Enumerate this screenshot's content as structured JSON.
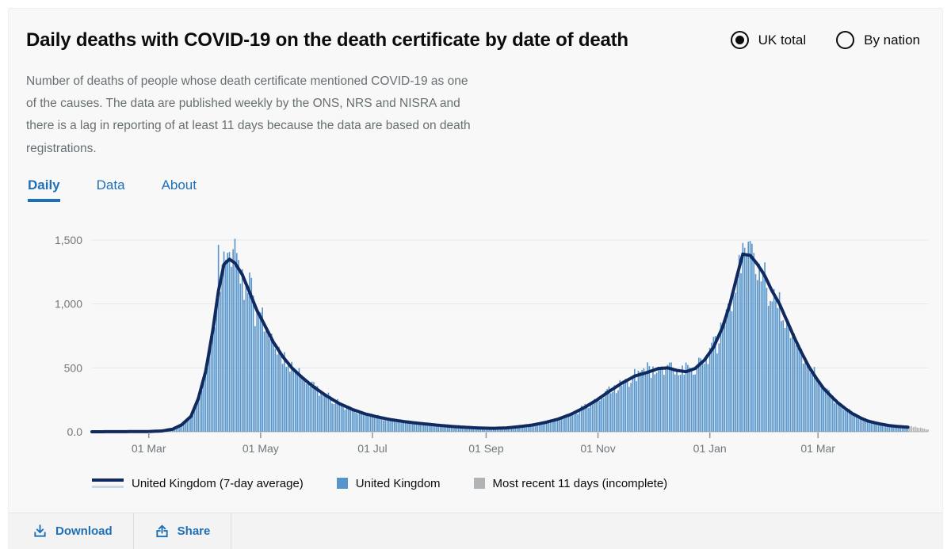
{
  "header": {
    "title": "Daily deaths with COVID-19 on the death certificate by date of death",
    "radios": [
      {
        "label": "UK total",
        "selected": true
      },
      {
        "label": "By nation",
        "selected": false
      }
    ]
  },
  "description": "Number of deaths of people whose death certificate mentioned COVID-19 as one of the causes. The data are published weekly by the ONS, NRS and NISRA and there is a lag in reporting of at least 11 days because the data are based on death registrations.",
  "tabs": [
    {
      "label": "Daily",
      "active": true
    },
    {
      "label": "Data",
      "active": false
    },
    {
      "label": "About",
      "active": false
    }
  ],
  "colors": {
    "bar_blue": "#5694ca",
    "line_navy": "#10295f",
    "bar_gray": "#b1b4b6",
    "grid": "#e4e7e9",
    "axis": "#b1b4b6",
    "tick_text": "#6f777b",
    "link_blue": "#1d70b8"
  },
  "chart_data": {
    "type": "bar",
    "title": "Daily deaths with COVID-19 on the death certificate by date of death",
    "xlabel": "",
    "ylabel": "",
    "x_axis": {
      "start_date": "2020-01-30",
      "end_date": "2021-04-30",
      "ticks": [
        "2020-03-01",
        "2020-05-01",
        "2020-07-01",
        "2020-09-01",
        "2020-11-01",
        "2021-01-01",
        "2021-03-01"
      ],
      "tick_labels": [
        "01 Mar",
        "01 May",
        "01 Jul",
        "01 Sep",
        "01 Nov",
        "01 Jan",
        "01 Mar"
      ]
    },
    "y_axis": {
      "ticks": [
        0,
        500,
        1000,
        1500
      ],
      "tick_labels": [
        "0.0",
        "500",
        "1,000",
        "1,500"
      ],
      "ylim": [
        0,
        1550
      ],
      "grid": true
    },
    "series": [
      {
        "name": "United Kingdom (7-day average)",
        "type": "line",
        "color": "#10295f",
        "points": [
          [
            "2020-01-30",
            0
          ],
          [
            "2020-02-20",
            1
          ],
          [
            "2020-03-01",
            2
          ],
          [
            "2020-03-08",
            6
          ],
          [
            "2020-03-14",
            20
          ],
          [
            "2020-03-19",
            55
          ],
          [
            "2020-03-24",
            120
          ],
          [
            "2020-03-28",
            260
          ],
          [
            "2020-04-01",
            470
          ],
          [
            "2020-04-05",
            800
          ],
          [
            "2020-04-08",
            1100
          ],
          [
            "2020-04-11",
            1310
          ],
          [
            "2020-04-14",
            1350
          ],
          [
            "2020-04-17",
            1320
          ],
          [
            "2020-04-21",
            1230
          ],
          [
            "2020-04-25",
            1090
          ],
          [
            "2020-04-29",
            950
          ],
          [
            "2020-05-03",
            840
          ],
          [
            "2020-05-08",
            700
          ],
          [
            "2020-05-13",
            590
          ],
          [
            "2020-05-18",
            500
          ],
          [
            "2020-05-24",
            420
          ],
          [
            "2020-05-30",
            350
          ],
          [
            "2020-06-06",
            280
          ],
          [
            "2020-06-13",
            220
          ],
          [
            "2020-06-20",
            175
          ],
          [
            "2020-06-27",
            140
          ],
          [
            "2020-07-04",
            115
          ],
          [
            "2020-07-11",
            95
          ],
          [
            "2020-07-18",
            80
          ],
          [
            "2020-07-25",
            68
          ],
          [
            "2020-08-01",
            58
          ],
          [
            "2020-08-08",
            48
          ],
          [
            "2020-08-15",
            40
          ],
          [
            "2020-08-22",
            34
          ],
          [
            "2020-08-29",
            29
          ],
          [
            "2020-09-05",
            27
          ],
          [
            "2020-09-12",
            30
          ],
          [
            "2020-09-19",
            40
          ],
          [
            "2020-09-26",
            52
          ],
          [
            "2020-10-03",
            72
          ],
          [
            "2020-10-10",
            98
          ],
          [
            "2020-10-17",
            135
          ],
          [
            "2020-10-24",
            185
          ],
          [
            "2020-10-31",
            245
          ],
          [
            "2020-11-07",
            315
          ],
          [
            "2020-11-14",
            380
          ],
          [
            "2020-11-21",
            435
          ],
          [
            "2020-11-28",
            465
          ],
          [
            "2020-12-04",
            495
          ],
          [
            "2020-12-09",
            500
          ],
          [
            "2020-12-14",
            480
          ],
          [
            "2020-12-19",
            470
          ],
          [
            "2020-12-24",
            495
          ],
          [
            "2020-12-29",
            560
          ],
          [
            "2021-01-03",
            660
          ],
          [
            "2021-01-08",
            820
          ],
          [
            "2021-01-12",
            1000
          ],
          [
            "2021-01-16",
            1230
          ],
          [
            "2021-01-19",
            1390
          ],
          [
            "2021-01-23",
            1380
          ],
          [
            "2021-01-27",
            1310
          ],
          [
            "2021-01-31",
            1220
          ],
          [
            "2021-02-04",
            1100
          ],
          [
            "2021-02-08",
            1000
          ],
          [
            "2021-02-12",
            870
          ],
          [
            "2021-02-16",
            740
          ],
          [
            "2021-02-20",
            620
          ],
          [
            "2021-02-24",
            510
          ],
          [
            "2021-02-28",
            420
          ],
          [
            "2021-03-04",
            340
          ],
          [
            "2021-03-08",
            280
          ],
          [
            "2021-03-12",
            225
          ],
          [
            "2021-03-16",
            180
          ],
          [
            "2021-03-20",
            140
          ],
          [
            "2021-03-24",
            110
          ],
          [
            "2021-03-28",
            85
          ],
          [
            "2021-04-01",
            70
          ],
          [
            "2021-04-05",
            58
          ],
          [
            "2021-04-09",
            48
          ],
          [
            "2021-04-13",
            42
          ],
          [
            "2021-04-17",
            38
          ],
          [
            "2021-04-19",
            36
          ]
        ]
      },
      {
        "name": "United Kingdom",
        "type": "bar",
        "color": "#5694ca",
        "note": "daily bars scattered around the 7-day average",
        "spike_overrides": [
          [
            "2020-04-08",
            1462
          ],
          [
            "2021-01-19",
            1477
          ]
        ]
      },
      {
        "name": "Most recent 11 days (incomplete)",
        "type": "bar",
        "color": "#b1b4b6",
        "points": [
          [
            "2021-04-20",
            40
          ],
          [
            "2021-04-21",
            44
          ],
          [
            "2021-04-22",
            36
          ],
          [
            "2021-04-23",
            40
          ],
          [
            "2021-04-24",
            33
          ],
          [
            "2021-04-25",
            30
          ],
          [
            "2021-04-26",
            32
          ],
          [
            "2021-04-27",
            27
          ],
          [
            "2021-04-28",
            24
          ],
          [
            "2021-04-29",
            20
          ],
          [
            "2021-04-30",
            17
          ]
        ]
      }
    ],
    "legend_position": "bottom"
  },
  "legend": [
    {
      "label": "United Kingdom (7-day average)",
      "swatch": "line",
      "color": "#10295f"
    },
    {
      "label": "United Kingdom",
      "swatch": "square",
      "color": "#5694ca"
    },
    {
      "label": "Most recent 11 days (incomplete)",
      "swatch": "square",
      "color": "#b1b4b6"
    }
  ],
  "footer": {
    "download_label": "Download",
    "share_label": "Share"
  }
}
